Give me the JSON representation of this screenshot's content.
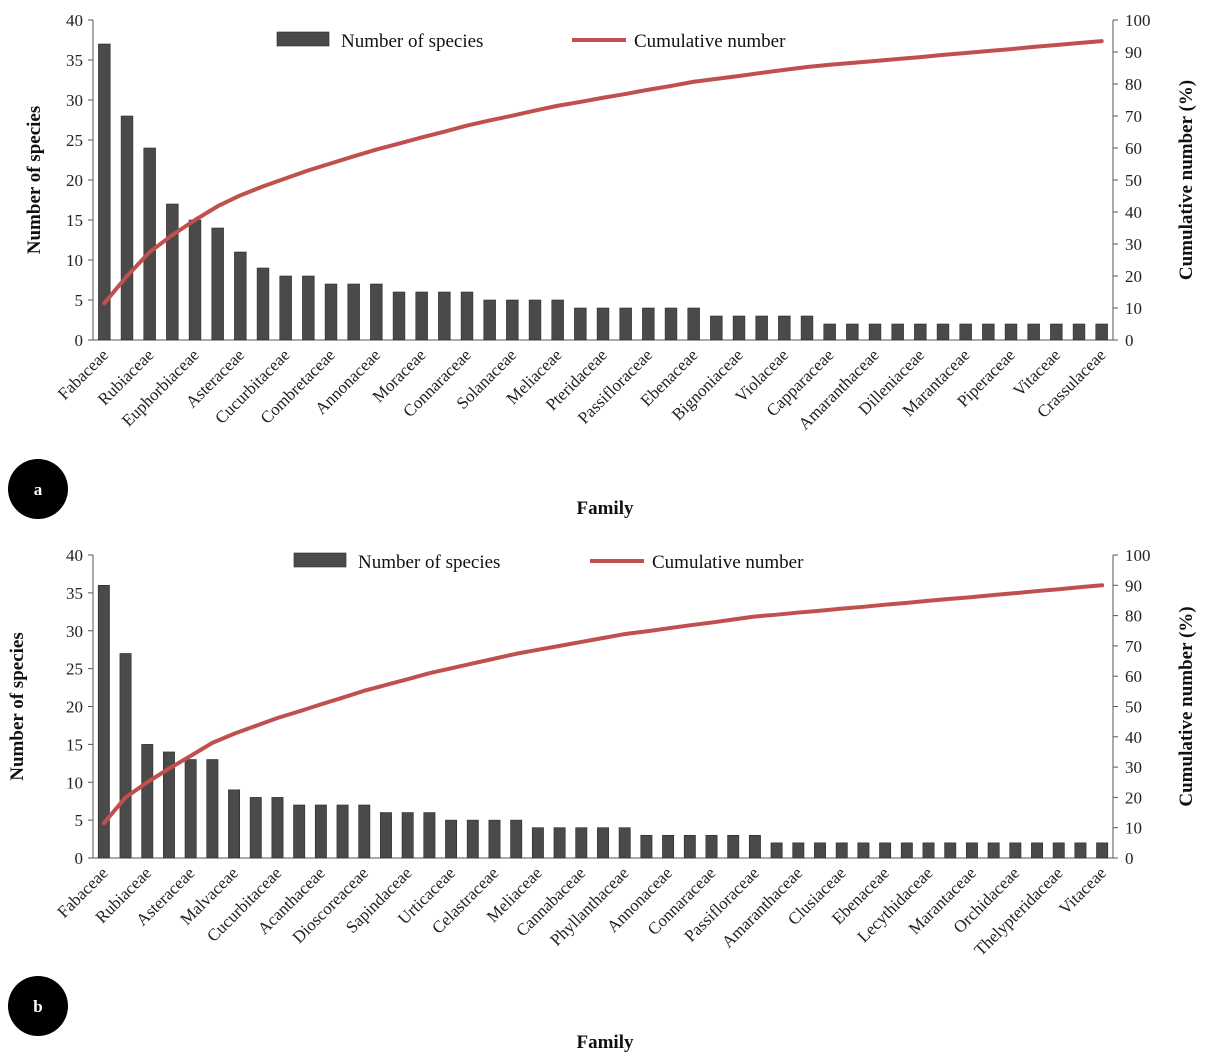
{
  "chart_data": [
    {
      "type": "bar",
      "panel_label": "a",
      "xlabel": "Family",
      "ylabel": "Number  of species",
      "y2label": "Cumulative  number  (%)",
      "ylim": [
        0,
        40
      ],
      "y2lim": [
        0,
        100
      ],
      "yticks": [
        "0",
        "5",
        "10",
        "15",
        "20",
        "25",
        "30",
        "35",
        "40"
      ],
      "y2ticks": [
        "0",
        "10",
        "20",
        "30",
        "40",
        "50",
        "60",
        "70",
        "80",
        "90",
        "100"
      ],
      "grid": false,
      "legend_position": "top",
      "colors": {
        "bars": "#4a4a4a",
        "line": "#c0504d"
      },
      "labeled_categories": [
        "Fabaceae",
        "Rubiaceae",
        "Euphorbiaceae",
        "Asteraceae",
        "Cucurbitaceae",
        "Combretaceae",
        "Annonaceae",
        "Moraceae",
        "Connaraceae",
        "Solanaceae",
        "Meliaceae",
        "Pteridaceae",
        "Passifloraceae",
        "Ebenaceae",
        "Bignoniaceae",
        "Violaceae",
        "Capparaceae",
        "Amaranthaceae",
        "Dilleniaceae",
        "Marantaceae",
        "Piperaceae",
        "Vitaceae",
        "Crassulaceae"
      ],
      "series": [
        {
          "name": "Number of species",
          "type": "bar",
          "values": [
            37,
            28,
            24,
            17,
            15,
            14,
            11,
            9,
            8,
            8,
            7,
            7,
            7,
            6,
            6,
            6,
            6,
            5,
            5,
            5,
            5,
            4,
            4,
            4,
            4,
            4,
            4,
            3,
            3,
            3,
            3,
            3,
            2,
            2,
            2,
            2,
            2,
            2,
            2,
            2,
            2,
            2,
            2,
            2,
            2
          ]
        },
        {
          "name": "Cumulative number",
          "type": "line",
          "axis": "right",
          "values": [
            11.5,
            20,
            27.5,
            32.8,
            37.5,
            41.8,
            45.2,
            48,
            50.5,
            53,
            55.2,
            57.4,
            59.5,
            61.4,
            63.3,
            65.1,
            67,
            68.6,
            70.1,
            71.7,
            73.2,
            74.4,
            75.7,
            76.9,
            78.2,
            79.4,
            80.7,
            81.6,
            82.5,
            83.5,
            84.4,
            85.3,
            86,
            86.6,
            87.2,
            87.8,
            88.4,
            89.1,
            89.7,
            90.3,
            90.9,
            91.6,
            92.2,
            92.8,
            93.4
          ]
        }
      ]
    },
    {
      "type": "bar",
      "panel_label": "b",
      "xlabel": "Family",
      "ylabel": "Number  of species",
      "y2label": "Cumulative  number  (%)",
      "ylim": [
        0,
        40
      ],
      "y2lim": [
        0,
        100
      ],
      "yticks": [
        "0",
        "5",
        "10",
        "15",
        "20",
        "25",
        "30",
        "35",
        "40"
      ],
      "y2ticks": [
        "0",
        "10",
        "20",
        "30",
        "40",
        "50",
        "60",
        "70",
        "80",
        "90",
        "100"
      ],
      "grid": false,
      "legend_position": "top",
      "colors": {
        "bars": "#4a4a4a",
        "line": "#c0504d"
      },
      "labeled_categories": [
        "Fabaceae",
        "Rubiaceae",
        "Asteraceae",
        "Malvaceae",
        "Cucurbitaceae",
        "Acanthaceae",
        "Dioscoreaceae",
        "Sapindaceae",
        "Urticaceae",
        "Celastraceae",
        "Meliaceae",
        "Cannabaceae",
        "Phyllanthaceae",
        "Annonaceae",
        "Connaraceae",
        "Passifloraceae",
        "Amaranthaceae",
        "Clusiaceae",
        "Ebenaceae",
        "Lecythidaceae",
        "Marantaceae",
        "Orchidaceae",
        "Thelypteridaceae",
        "Vitaceae"
      ],
      "series": [
        {
          "name": "Number of species",
          "type": "bar",
          "values": [
            36,
            27,
            15,
            14,
            13,
            13,
            9,
            8,
            8,
            7,
            7,
            7,
            7,
            6,
            6,
            6,
            5,
            5,
            5,
            5,
            4,
            4,
            4,
            4,
            4,
            3,
            3,
            3,
            3,
            3,
            3,
            2,
            2,
            2,
            2,
            2,
            2,
            2,
            2,
            2,
            2,
            2,
            2,
            2,
            2,
            2,
            2
          ]
        },
        {
          "name": "Cumulative number",
          "type": "line",
          "axis": "right",
          "values": [
            11.5,
            20,
            25,
            29.5,
            33.7,
            38,
            41,
            43.6,
            46.2,
            48.4,
            50.7,
            52.9,
            55.2,
            57.1,
            59,
            61,
            62.6,
            64.2,
            65.8,
            67.4,
            68.7,
            70,
            71.3,
            72.6,
            73.9,
            74.8,
            75.8,
            76.8,
            77.7,
            78.7,
            79.7,
            80.3,
            81,
            81.6,
            82.3,
            82.9,
            83.6,
            84.2,
            84.9,
            85.5,
            86.1,
            86.8,
            87.4,
            88.1,
            88.7,
            89.4,
            90
          ]
        }
      ]
    }
  ]
}
